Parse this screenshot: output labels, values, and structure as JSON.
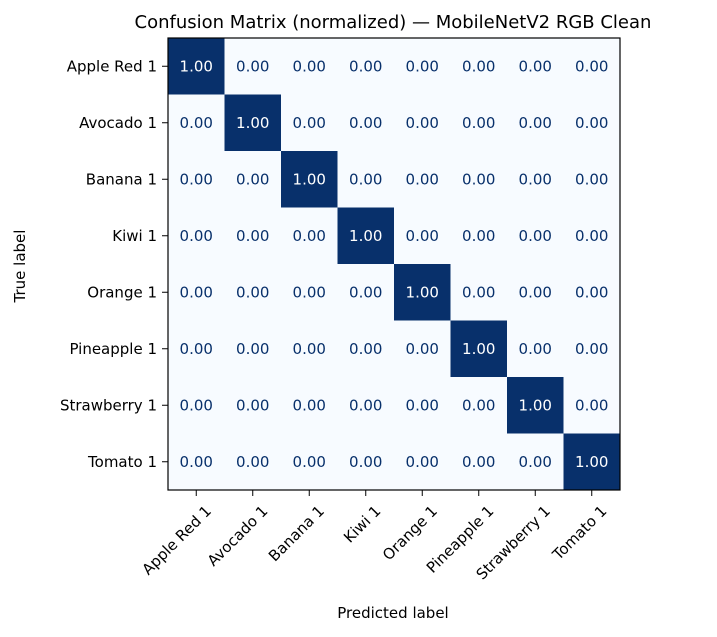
{
  "chart_data": {
    "type": "heatmap",
    "title": "Confusion Matrix (normalized) — MobileNetV2 RGB Clean",
    "xlabel": "Predicted label",
    "ylabel": "True label",
    "categories": [
      "Apple Red 1",
      "Avocado 1",
      "Banana 1",
      "Kiwi 1",
      "Orange 1",
      "Pineapple 1",
      "Strawberry 1",
      "Tomato 1"
    ],
    "matrix": [
      [
        1.0,
        0.0,
        0.0,
        0.0,
        0.0,
        0.0,
        0.0,
        0.0
      ],
      [
        0.0,
        1.0,
        0.0,
        0.0,
        0.0,
        0.0,
        0.0,
        0.0
      ],
      [
        0.0,
        0.0,
        1.0,
        0.0,
        0.0,
        0.0,
        0.0,
        0.0
      ],
      [
        0.0,
        0.0,
        0.0,
        1.0,
        0.0,
        0.0,
        0.0,
        0.0
      ],
      [
        0.0,
        0.0,
        0.0,
        0.0,
        1.0,
        0.0,
        0.0,
        0.0
      ],
      [
        0.0,
        0.0,
        0.0,
        0.0,
        0.0,
        1.0,
        0.0,
        0.0
      ],
      [
        0.0,
        0.0,
        0.0,
        0.0,
        0.0,
        0.0,
        1.0,
        0.0
      ],
      [
        0.0,
        0.0,
        0.0,
        0.0,
        0.0,
        0.0,
        0.0,
        1.0
      ]
    ],
    "value_range": [
      0,
      1
    ],
    "colormap": "Blues",
    "colors": {
      "low": "#f7fbff",
      "high": "#08306b",
      "text_on_low": "#08306b",
      "text_on_high": "#ffffff"
    },
    "grid": false,
    "legend": "none"
  }
}
